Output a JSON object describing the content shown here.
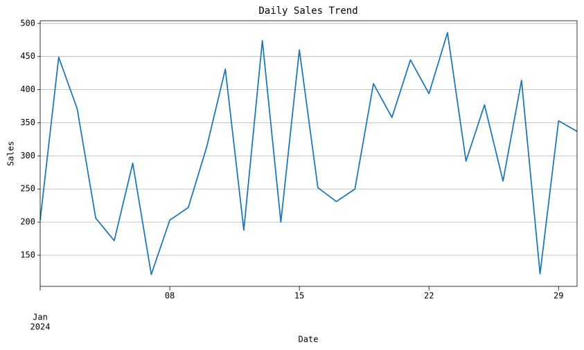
{
  "chart_data": {
    "type": "line",
    "title": "Daily Sales Trend",
    "x_label": "Date",
    "y_label": "Sales",
    "x": [
      "2024-01-01",
      "2024-01-02",
      "2024-01-03",
      "2024-01-04",
      "2024-01-05",
      "2024-01-06",
      "2024-01-07",
      "2024-01-08",
      "2024-01-09",
      "2024-01-10",
      "2024-01-11",
      "2024-01-12",
      "2024-01-13",
      "2024-01-14",
      "2024-01-15",
      "2024-01-16",
      "2024-01-17",
      "2024-01-18",
      "2024-01-19",
      "2024-01-20",
      "2024-01-21",
      "2024-01-22",
      "2024-01-23",
      "2024-01-24",
      "2024-01-25",
      "2024-01-26",
      "2024-01-27",
      "2024-01-28",
      "2024-01-29",
      "2024-01-30"
    ],
    "series": [
      {
        "name": "Sales",
        "color": "#1f77b4",
        "values": [
          203,
          449,
          371,
          206,
          172,
          289,
          121,
          203,
          222,
          314,
          431,
          188,
          474,
          200,
          460,
          252,
          231,
          250,
          409,
          358,
          445,
          394,
          486,
          292,
          377,
          262,
          414,
          122,
          353,
          337
        ]
      }
    ],
    "xlim": [
      "2024-01-01",
      "2024-01-30"
    ],
    "xticks": [
      {
        "value": "2024-01-01",
        "label": "Jan",
        "sublabel": "2024"
      },
      {
        "value": "2024-01-08",
        "label": "08"
      },
      {
        "value": "2024-01-15",
        "label": "15"
      },
      {
        "value": "2024-01-22",
        "label": "22"
      },
      {
        "value": "2024-01-29",
        "label": "29"
      }
    ],
    "ylim": [
      103,
      504
    ],
    "yticks": [
      150,
      200,
      250,
      300,
      350,
      400,
      450,
      500
    ],
    "grid": true
  }
}
